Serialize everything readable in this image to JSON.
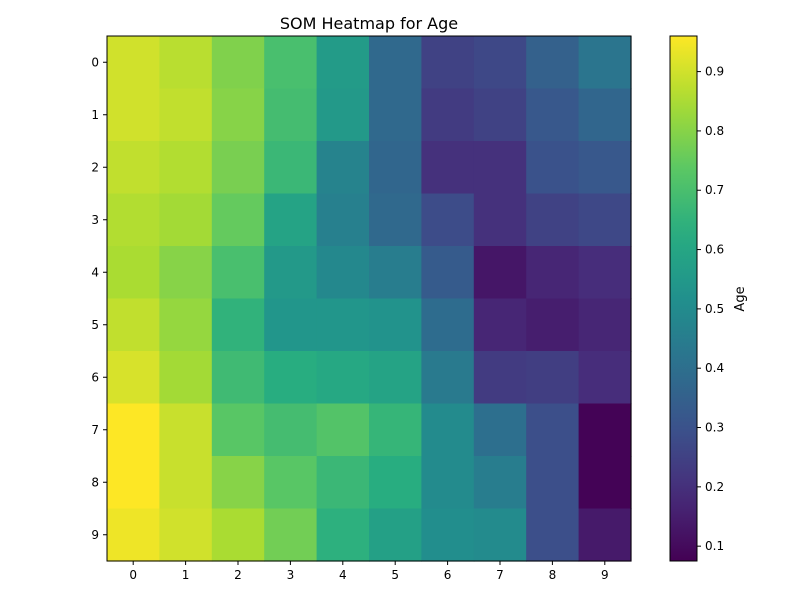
{
  "chart_data": {
    "type": "heatmap",
    "title": "SOM Heatmap for Age",
    "xlabel": "",
    "ylabel": "",
    "x_categories": [
      "0",
      "1",
      "2",
      "3",
      "4",
      "5",
      "6",
      "7",
      "8",
      "9"
    ],
    "y_categories": [
      "0",
      "1",
      "2",
      "3",
      "4",
      "5",
      "6",
      "7",
      "8",
      "9"
    ],
    "values": [
      [
        0.9,
        0.87,
        0.79,
        0.7,
        0.56,
        0.38,
        0.25,
        0.27,
        0.35,
        0.42
      ],
      [
        0.9,
        0.88,
        0.8,
        0.69,
        0.55,
        0.38,
        0.23,
        0.25,
        0.32,
        0.37
      ],
      [
        0.88,
        0.86,
        0.78,
        0.67,
        0.47,
        0.37,
        0.2,
        0.2,
        0.3,
        0.32
      ],
      [
        0.86,
        0.84,
        0.75,
        0.59,
        0.46,
        0.38,
        0.28,
        0.2,
        0.25,
        0.27
      ],
      [
        0.85,
        0.8,
        0.7,
        0.55,
        0.49,
        0.45,
        0.33,
        0.13,
        0.17,
        0.19
      ],
      [
        0.88,
        0.82,
        0.65,
        0.54,
        0.54,
        0.53,
        0.39,
        0.17,
        0.15,
        0.17
      ],
      [
        0.91,
        0.84,
        0.68,
        0.63,
        0.61,
        0.59,
        0.44,
        0.23,
        0.24,
        0.19
      ],
      [
        0.96,
        0.89,
        0.73,
        0.69,
        0.72,
        0.66,
        0.5,
        0.4,
        0.29,
        0.08
      ],
      [
        0.96,
        0.89,
        0.8,
        0.73,
        0.67,
        0.63,
        0.5,
        0.45,
        0.29,
        0.08
      ],
      [
        0.94,
        0.9,
        0.85,
        0.77,
        0.64,
        0.58,
        0.51,
        0.5,
        0.29,
        0.14
      ]
    ],
    "zlim": [
      0.075,
      0.96
    ],
    "colormap": "viridis",
    "colorbar": {
      "label": "Age",
      "ticks": [
        0.1,
        0.2,
        0.3,
        0.4,
        0.5,
        0.6,
        0.7,
        0.8,
        0.9
      ],
      "tick_labels": [
        "0.1",
        "0.2",
        "0.3",
        "0.4",
        "0.5",
        "0.6",
        "0.7",
        "0.8",
        "0.9"
      ]
    },
    "grid": false
  }
}
